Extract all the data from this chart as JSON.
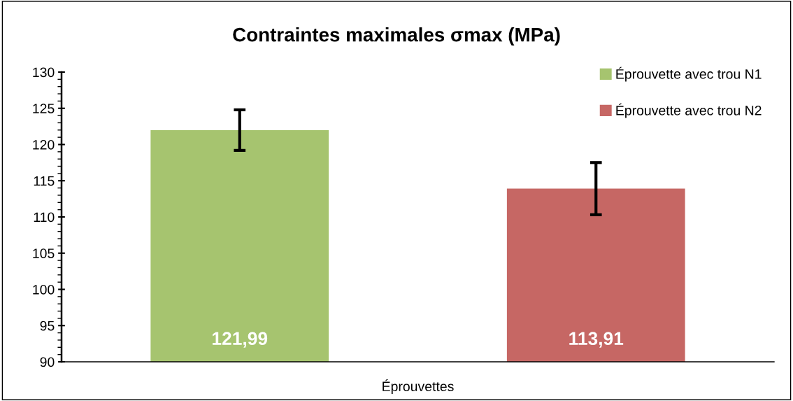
{
  "chart_data": {
    "type": "bar",
    "title": "Contraintes maximales σmax (MPa)",
    "categories": [
      "Éprouvettes"
    ],
    "series": [
      {
        "name": "Éprouvette avec trou N1",
        "color": "#a6c46f",
        "values": [
          121.99
        ],
        "errors": [
          2.8
        ],
        "value_labels": [
          "121,99"
        ]
      },
      {
        "name": "Éprouvette avec trou N2",
        "color": "#c66764",
        "values": [
          113.91
        ],
        "errors": [
          3.6
        ],
        "value_labels": [
          "113,91"
        ]
      }
    ],
    "ylim": [
      90,
      130
    ],
    "yticks": [
      90,
      95,
      100,
      105,
      110,
      115,
      120,
      125,
      130
    ],
    "grid": false,
    "legend": "top right"
  }
}
